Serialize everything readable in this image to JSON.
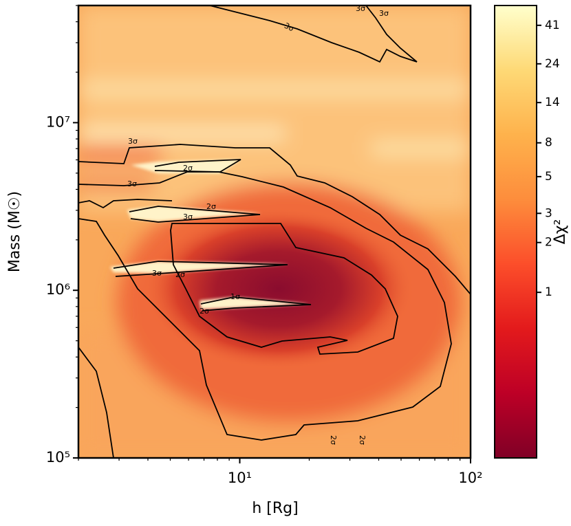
{
  "chart_data": {
    "type": "heatmap",
    "x_label": "h [Rg]",
    "y_label": "Mass (M☉)",
    "xscale": "log",
    "yscale": "log",
    "xlim": [
      2,
      100
    ],
    "ylim": [
      100000,
      50000000
    ],
    "xticks": [
      {
        "value": 10,
        "label": "10¹"
      },
      {
        "value": 100,
        "label": "10²"
      }
    ],
    "yticks": [
      {
        "value": 100000,
        "label": "10⁵"
      },
      {
        "value": 1000000,
        "label": "10⁶"
      },
      {
        "value": 10000000,
        "label": "10⁷"
      }
    ],
    "colorbar": {
      "label": "Δχ²",
      "scale": "log",
      "lim": [
        0.1,
        54
      ],
      "ticks": [
        1,
        2,
        3,
        5,
        8,
        14,
        24,
        41
      ],
      "colors": [
        "#800026",
        "#bd0026",
        "#e31a1c",
        "#fc4e2a",
        "#fd8d3c",
        "#feb24c",
        "#fed976",
        "#ffffcc"
      ]
    },
    "contour_labels": [
      "3σ",
      "3σ",
      "3σ",
      "3σ",
      "3σ",
      "3σ",
      "3σ",
      "2σ",
      "2σ",
      "2σ",
      "2σ",
      "2σ",
      "2σ",
      "1σ"
    ]
  }
}
